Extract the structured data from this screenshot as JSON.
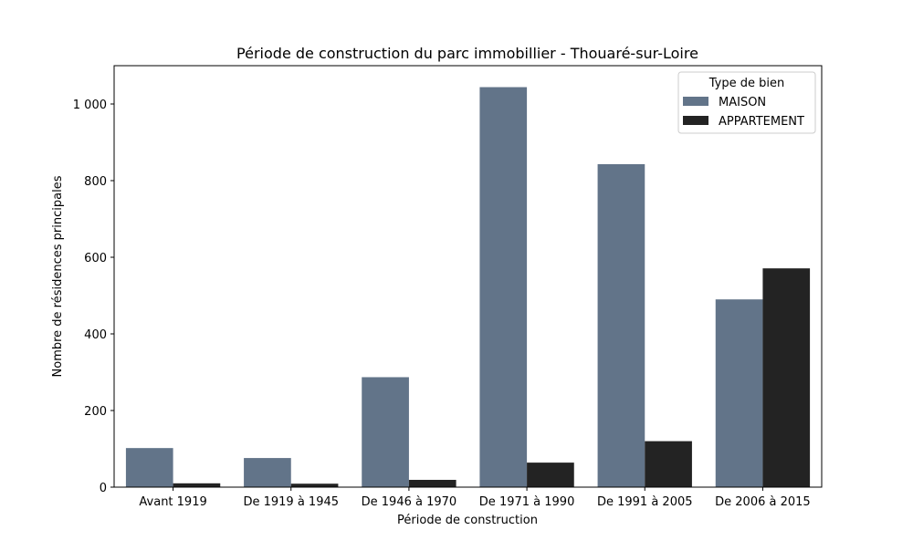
{
  "chart_data": {
    "type": "bar",
    "title": "Période de construction du parc immobillier - Thouaré-sur-Loire",
    "xlabel": "Période de construction",
    "ylabel": "Nombre de résidences principales",
    "categories": [
      "Avant 1919",
      "De 1919 à 1945",
      "De 1946 à 1970",
      "De 1971 à 1990",
      "De 1991 à 2005",
      "De 2006 à 2015"
    ],
    "series": [
      {
        "name": "MAISON",
        "color": "#627489",
        "values": [
          102,
          76,
          287,
          1044,
          843,
          490
        ]
      },
      {
        "name": "APPARTEMENT",
        "color": "#232323",
        "values": [
          10,
          9,
          19,
          64,
          120,
          571
        ]
      }
    ],
    "ylim": [
      0,
      1100
    ],
    "yticks": [
      0,
      200,
      400,
      600,
      800,
      1000
    ],
    "ytick_labels": [
      "0",
      "200",
      "400",
      "600",
      "800",
      "1 000"
    ],
    "legend": {
      "title": "Type de bien",
      "position": "top-right"
    },
    "grid": false
  }
}
